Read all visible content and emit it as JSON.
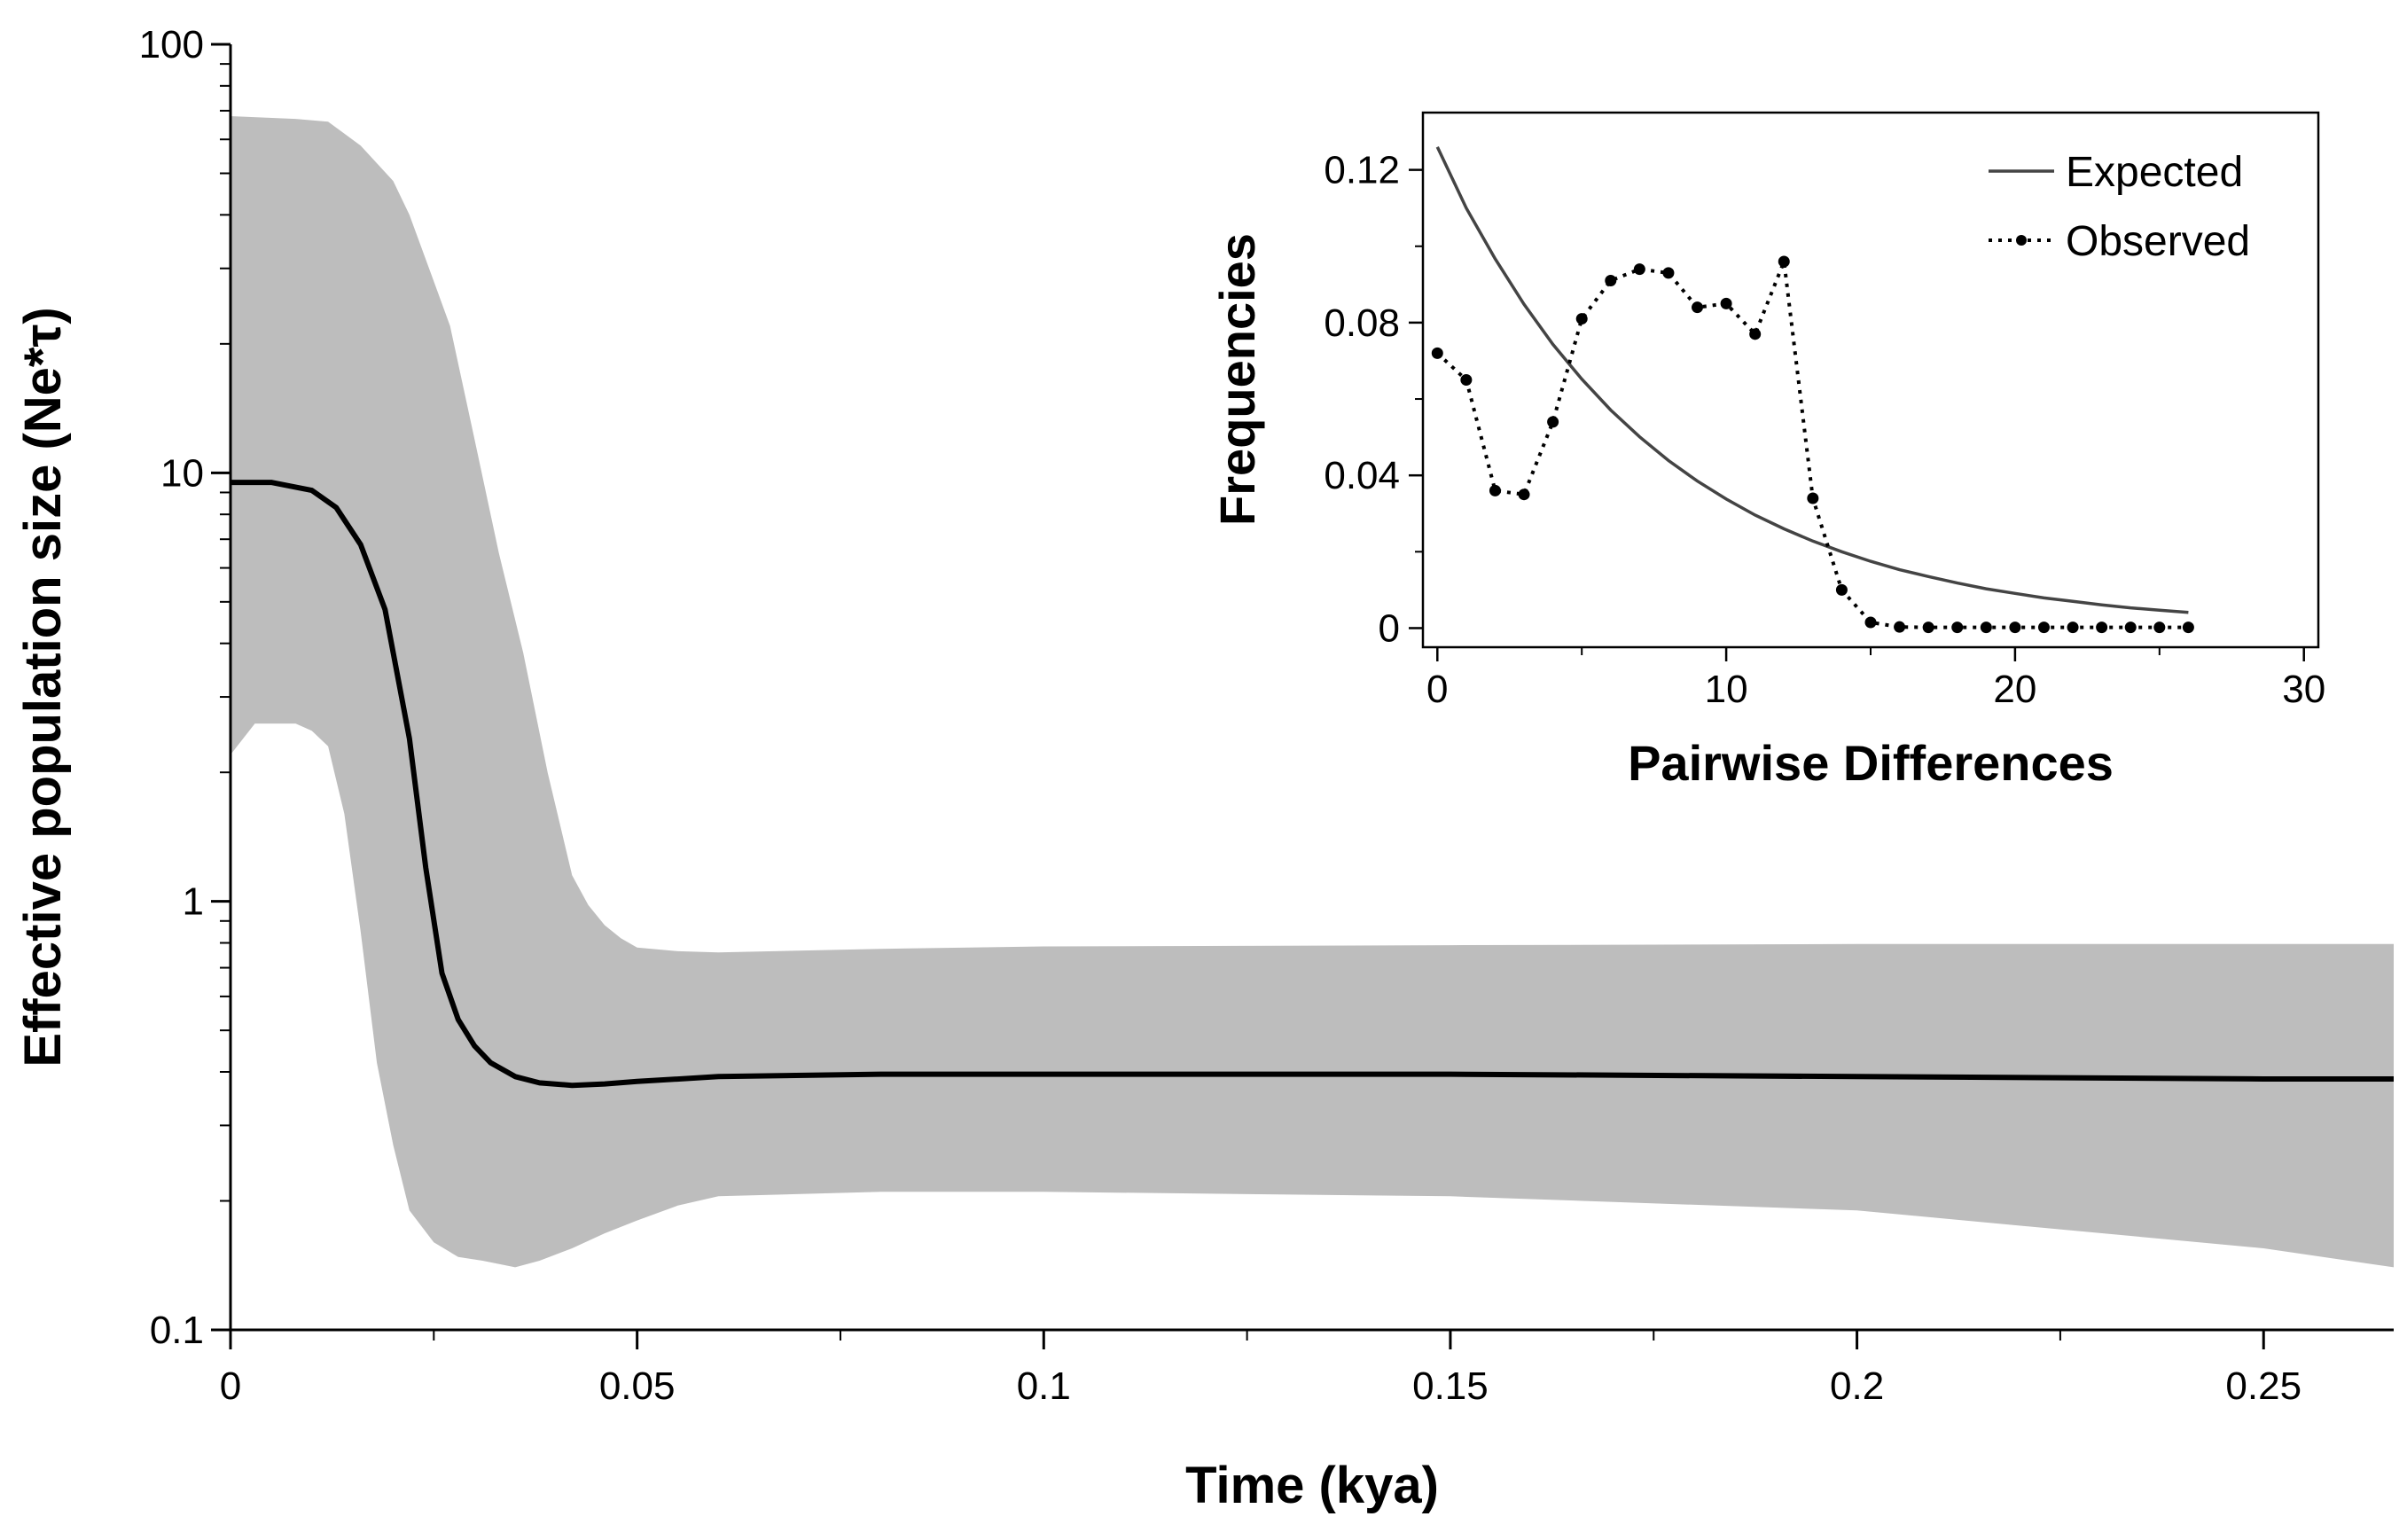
{
  "chart_data": [
    {
      "type": "line",
      "title": "",
      "xlabel": "Time (kya)",
      "ylabel": "Effective population size (Ne*τ)",
      "xlim": [
        0,
        0.266
      ],
      "ylim": [
        0.1,
        100
      ],
      "yscale": "log",
      "x_ticks": [
        0,
        0.05,
        0.1,
        0.15,
        0.2,
        0.25
      ],
      "x_tick_labels": [
        "0",
        "0.05",
        "0.1",
        "0.15",
        "0.2",
        "0.25"
      ],
      "y_ticks": [
        0.1,
        1,
        10,
        100
      ],
      "y_tick_labels": [
        "0.1",
        "1",
        "10",
        "100"
      ],
      "grid": false,
      "band_color": "#bdbdbd",
      "line_color": "#000000",
      "series": [
        {
          "role": "median",
          "x": [
            0,
            0.005,
            0.01,
            0.013,
            0.016,
            0.019,
            0.022,
            0.024,
            0.026,
            0.028,
            0.03,
            0.032,
            0.035,
            0.038,
            0.042,
            0.046,
            0.05,
            0.06,
            0.08,
            0.1,
            0.15,
            0.2,
            0.25,
            0.266
          ],
          "y": [
            9.5,
            9.5,
            9.1,
            8.3,
            6.8,
            4.8,
            2.4,
            1.2,
            0.68,
            0.53,
            0.46,
            0.42,
            0.39,
            0.377,
            0.372,
            0.375,
            0.38,
            0.39,
            0.395,
            0.395,
            0.395,
            0.39,
            0.385,
            0.385
          ]
        },
        {
          "role": "upper-95",
          "x": [
            0,
            0.008,
            0.012,
            0.016,
            0.02,
            0.022,
            0.025,
            0.027,
            0.03,
            0.033,
            0.036,
            0.039,
            0.042,
            0.044,
            0.046,
            0.048,
            0.05,
            0.055,
            0.06,
            0.08,
            0.1,
            0.15,
            0.2,
            0.25,
            0.266
          ],
          "y": [
            68,
            67,
            66,
            58,
            48,
            40,
            28,
            22,
            12,
            6.5,
            3.8,
            2.0,
            1.15,
            0.98,
            0.88,
            0.82,
            0.78,
            0.765,
            0.76,
            0.775,
            0.785,
            0.79,
            0.795,
            0.795,
            0.795
          ]
        },
        {
          "role": "lower-95",
          "x": [
            0,
            0.003,
            0.008,
            0.01,
            0.012,
            0.014,
            0.016,
            0.018,
            0.02,
            0.022,
            0.025,
            0.028,
            0.031,
            0.035,
            0.038,
            0.042,
            0.046,
            0.05,
            0.055,
            0.06,
            0.08,
            0.1,
            0.15,
            0.2,
            0.25,
            0.266
          ],
          "y": [
            2.2,
            2.6,
            2.6,
            2.5,
            2.3,
            1.6,
            0.85,
            0.42,
            0.27,
            0.19,
            0.16,
            0.148,
            0.145,
            0.14,
            0.145,
            0.155,
            0.168,
            0.18,
            0.195,
            0.205,
            0.21,
            0.21,
            0.205,
            0.19,
            0.155,
            0.14
          ]
        }
      ]
    },
    {
      "type": "line",
      "title": "",
      "xlabel": "Pairwise Differences",
      "ylabel": "Frequencies",
      "xlim": [
        -0.5,
        30.5
      ],
      "ylim": [
        -0.005,
        0.135
      ],
      "x_ticks": [
        0,
        10,
        20,
        30
      ],
      "x_tick_labels": [
        "0",
        "10",
        "20",
        "30"
      ],
      "y_ticks": [
        0,
        0.04,
        0.08,
        0.12
      ],
      "y_tick_labels": [
        "0",
        "0.04",
        "0.08",
        "0.12"
      ],
      "grid": false,
      "legend_position": "top-right",
      "series": [
        {
          "name": "Expected",
          "style": "solid",
          "color": "#444444",
          "x": [
            0,
            1,
            2,
            3,
            4,
            5,
            6,
            7,
            8,
            9,
            10,
            11,
            12,
            13,
            14,
            15,
            16,
            17,
            18,
            19,
            20,
            21,
            22,
            23,
            24,
            25,
            26
          ],
          "y": [
            0.126,
            0.11,
            0.0967,
            0.0848,
            0.0743,
            0.0652,
            0.0571,
            0.0501,
            0.0439,
            0.0385,
            0.0338,
            0.0296,
            0.026,
            0.0228,
            0.02,
            0.0175,
            0.0153,
            0.0135,
            0.0118,
            0.0103,
            0.0091,
            0.0079,
            0.007,
            0.0061,
            0.0053,
            0.0047,
            0.0041
          ]
        },
        {
          "name": "Observed",
          "style": "dotted-with-markers",
          "color": "#000000",
          "x": [
            0,
            1,
            2,
            3,
            4,
            5,
            6,
            7,
            8,
            9,
            10,
            11,
            12,
            13,
            14,
            15,
            16,
            17,
            18,
            19,
            20,
            21,
            22,
            23,
            24,
            25,
            26
          ],
          "y": [
            0.072,
            0.065,
            0.036,
            0.035,
            0.054,
            0.081,
            0.091,
            0.094,
            0.093,
            0.084,
            0.085,
            0.077,
            0.096,
            0.034,
            0.01,
            0.0015,
            0.0003,
            0.0002,
            0.0002,
            0.0002,
            0.0002,
            0.0002,
            0.0002,
            0.0002,
            0.0002,
            0.0002,
            0.0002
          ]
        }
      ]
    }
  ]
}
